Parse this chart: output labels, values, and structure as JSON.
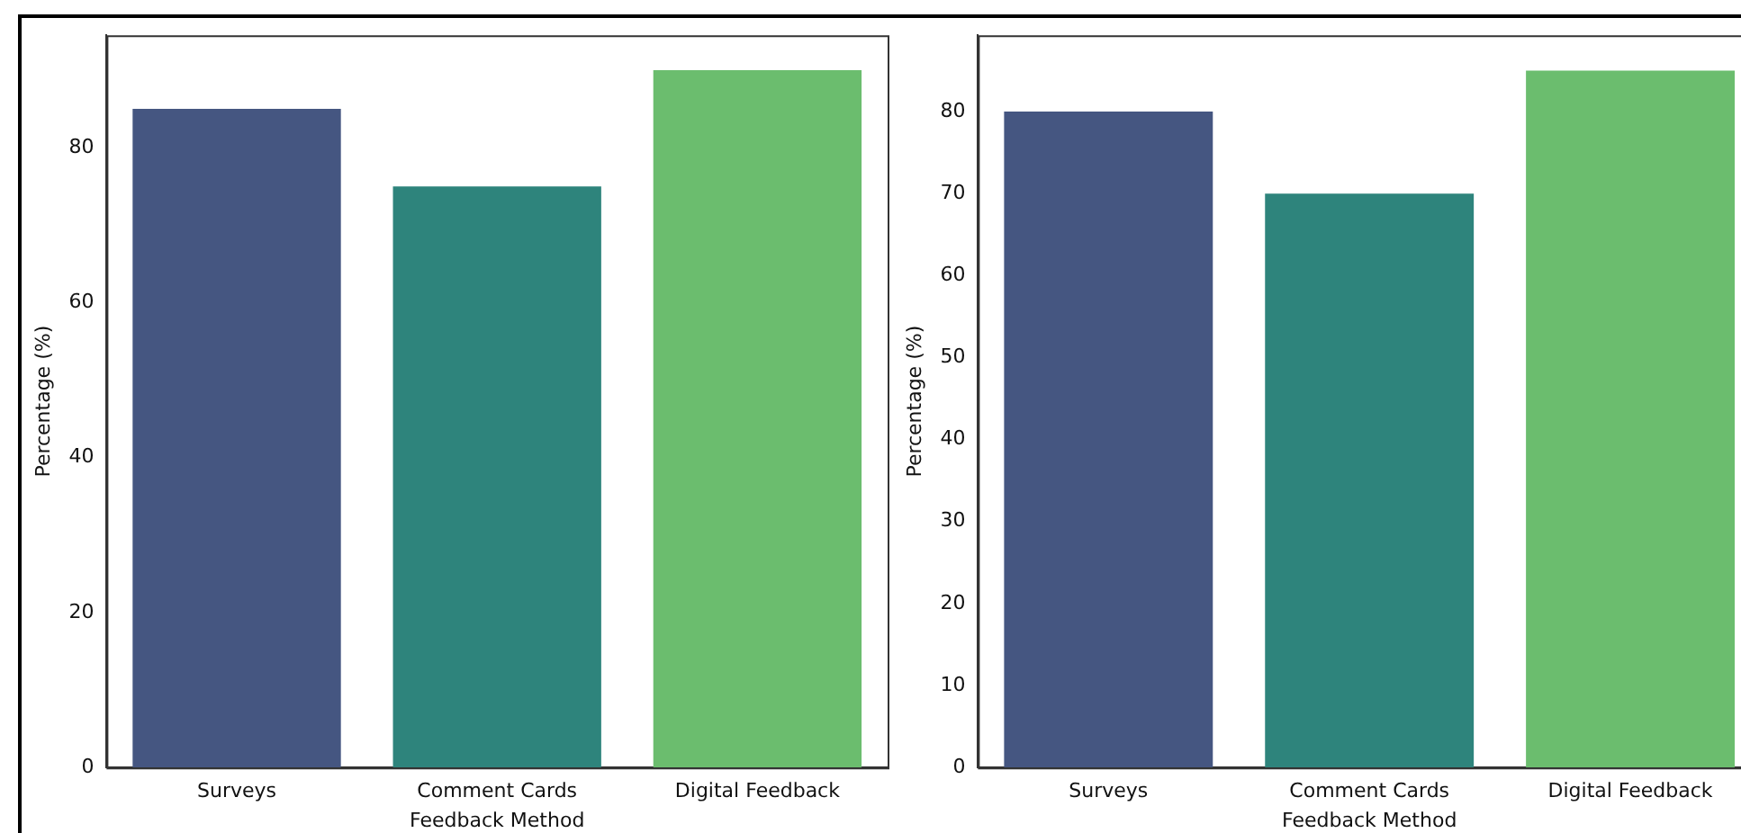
{
  "chart_data": [
    {
      "type": "bar",
      "categories": [
        "Surveys",
        "Comment Cards",
        "Digital Feedback"
      ],
      "values": [
        85,
        75,
        90
      ],
      "colors": [
        "#455681",
        "#2e847c",
        "#6bbd6e"
      ],
      "xlabel": "Feedback Method",
      "ylabel": "Percentage (%)",
      "ylim": [
        0,
        94.5
      ],
      "yticks": [
        0,
        20,
        40,
        60,
        80
      ],
      "grid": false,
      "legend": false
    },
    {
      "type": "bar",
      "categories": [
        "Surveys",
        "Comment Cards",
        "Digital Feedback"
      ],
      "values": [
        80,
        70,
        85
      ],
      "colors": [
        "#455681",
        "#2e847c",
        "#6bbd6e"
      ],
      "xlabel": "Feedback Method",
      "ylabel": "Percentage (%)",
      "ylim": [
        0,
        89.3
      ],
      "yticks": [
        0,
        10,
        20,
        30,
        40,
        50,
        60,
        70,
        80
      ],
      "grid": false,
      "legend": false
    }
  ]
}
